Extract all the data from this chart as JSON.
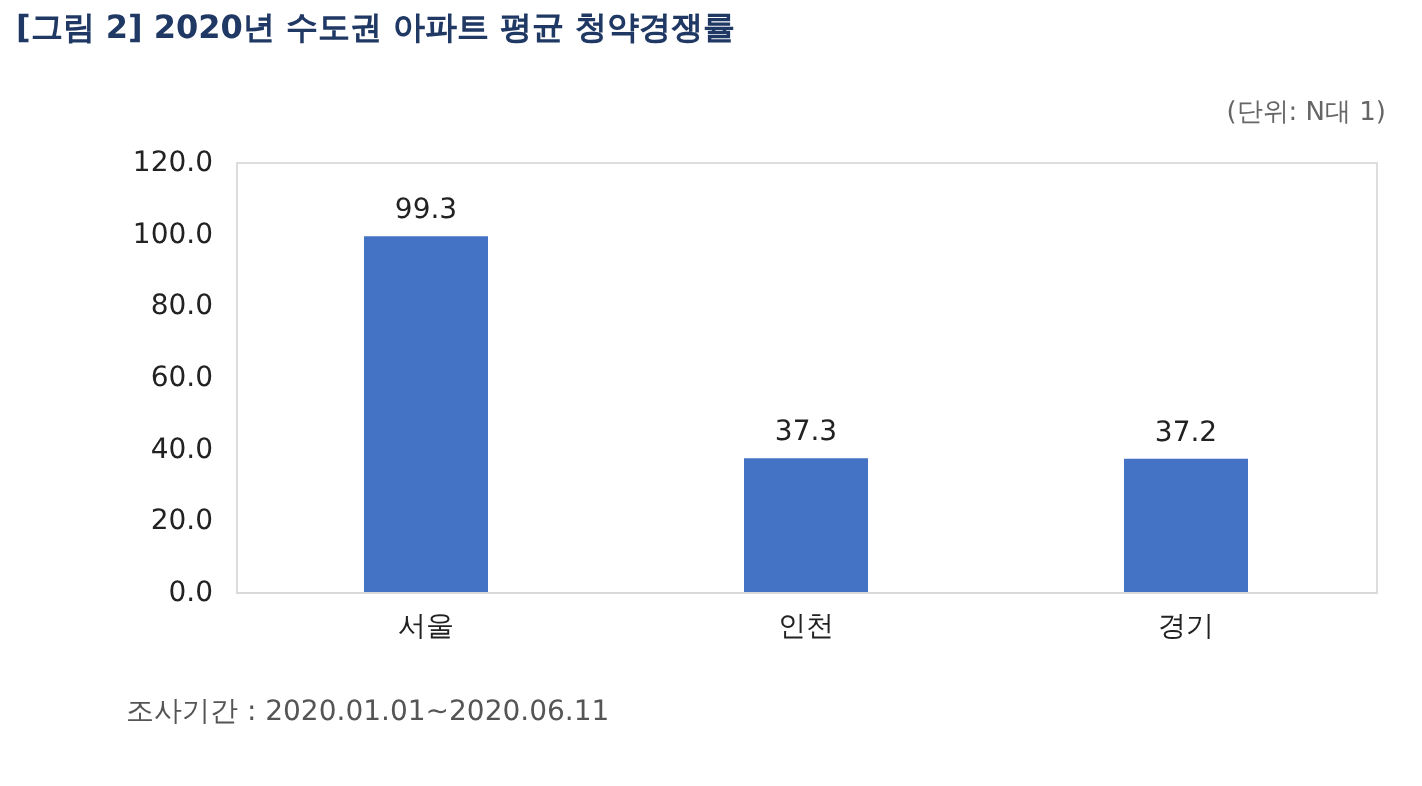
{
  "chart_data": {
    "type": "bar",
    "title": "[그림 2] 2020년 수도권 아파트 평균 청약경쟁률",
    "subtitle": "(단위: N대 1)",
    "categories": [
      "서울",
      "인천",
      "경기"
    ],
    "values": [
      99.3,
      37.3,
      37.2
    ],
    "color": "#4472c4",
    "data_labels": true,
    "ylim": [
      0,
      120
    ],
    "yticks": [
      {
        "value": 0,
        "label": "0.0"
      },
      {
        "value": 20,
        "label": "20.0"
      },
      {
        "value": 40,
        "label": "40.0"
      },
      {
        "value": 60,
        "label": "60.0"
      },
      {
        "value": 80,
        "label": "80.0"
      },
      {
        "value": 100,
        "label": "100.0"
      },
      {
        "value": 120,
        "label": "120.0"
      }
    ],
    "grid": false,
    "annotations": [
      "조사기간 : 2020.01.01~2020.06.11"
    ]
  }
}
